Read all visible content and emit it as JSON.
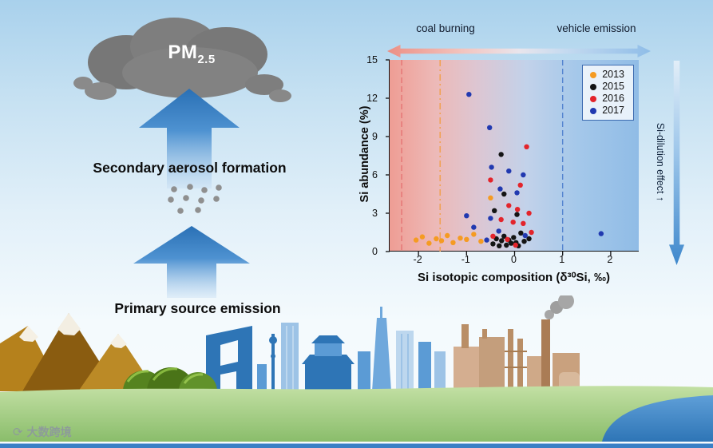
{
  "diagram": {
    "pm_label": "PM",
    "pm_subscript": "2.5",
    "secondary_label": "Secondary aerosol formation",
    "primary_label": "Primary source emission"
  },
  "chart": {
    "coal_label": "coal burning",
    "vehicle_label": "vehicle emission",
    "side_label": "Si-dilution effect ↑"
  },
  "chart_data": {
    "type": "scatter",
    "xlabel": "Si isotopic composition (δ³⁰Si, ‰)",
    "ylabel": "Si abundance (%)",
    "xlim": [
      -2.6,
      2.6
    ],
    "ylim": [
      0,
      15
    ],
    "x_ticks": [
      -2,
      -1,
      0,
      1,
      2
    ],
    "y_ticks": [
      0,
      3,
      6,
      9,
      12,
      15
    ],
    "grid": false,
    "legend_position": "top-right",
    "background_gradient": [
      "#ee9d94",
      "#90bce6"
    ],
    "vlines": [
      {
        "x": -2.35,
        "color": "#e57373",
        "dash": "7 4"
      },
      {
        "x": -1.55,
        "color": "#f0a04a",
        "dash": "8 4 2 4"
      },
      {
        "x": 1.0,
        "color": "#5585d0",
        "dash": "7 4"
      }
    ],
    "series": [
      {
        "name": "2013",
        "color": "#F59B22",
        "points": [
          [
            -2.05,
            0.9
          ],
          [
            -1.92,
            1.15
          ],
          [
            -1.78,
            0.65
          ],
          [
            -1.63,
            1.0
          ],
          [
            -1.52,
            0.85
          ],
          [
            -1.4,
            1.25
          ],
          [
            -1.28,
            0.7
          ],
          [
            -1.13,
            1.05
          ],
          [
            -1.0,
            0.95
          ],
          [
            -0.85,
            1.35
          ],
          [
            -0.7,
            0.8
          ],
          [
            -0.5,
            4.2
          ]
        ]
      },
      {
        "name": "2015",
        "color": "#141414",
        "points": [
          [
            -0.28,
            7.6
          ],
          [
            -0.22,
            4.5
          ],
          [
            -0.42,
            3.2
          ],
          [
            0.05,
            2.9
          ],
          [
            -0.45,
            0.6
          ],
          [
            -0.38,
            1.0
          ],
          [
            -0.32,
            0.45
          ],
          [
            -0.27,
            0.85
          ],
          [
            -0.22,
            1.2
          ],
          [
            -0.17,
            0.5
          ],
          [
            -0.12,
            0.9
          ],
          [
            -0.07,
            0.65
          ],
          [
            -0.02,
            1.1
          ],
          [
            0.03,
            0.7
          ],
          [
            0.08,
            0.45
          ],
          [
            0.13,
            1.45
          ],
          [
            0.2,
            0.8
          ],
          [
            0.3,
            1.0
          ]
        ]
      },
      {
        "name": "2016",
        "color": "#E3242B",
        "points": [
          [
            0.25,
            8.2
          ],
          [
            -0.5,
            5.6
          ],
          [
            0.12,
            5.2
          ],
          [
            -0.12,
            3.6
          ],
          [
            0.06,
            3.3
          ],
          [
            0.3,
            3.0
          ],
          [
            -0.28,
            2.5
          ],
          [
            -0.03,
            2.3
          ],
          [
            0.18,
            2.2
          ],
          [
            -0.45,
            1.2
          ],
          [
            -0.15,
            0.95
          ],
          [
            0.02,
            0.5
          ],
          [
            0.35,
            1.5
          ]
        ]
      },
      {
        "name": "2017",
        "color": "#2139B0",
        "points": [
          [
            -0.95,
            12.3
          ],
          [
            -0.52,
            9.7
          ],
          [
            -0.48,
            6.6
          ],
          [
            -0.12,
            6.3
          ],
          [
            0.18,
            6.0
          ],
          [
            -0.3,
            4.9
          ],
          [
            0.05,
            4.6
          ],
          [
            -1.0,
            2.8
          ],
          [
            -0.5,
            2.6
          ],
          [
            -0.85,
            1.9
          ],
          [
            -0.58,
            0.9
          ],
          [
            -0.33,
            1.6
          ],
          [
            0.22,
            1.25
          ],
          [
            1.8,
            1.4
          ]
        ]
      }
    ]
  },
  "watermark": {
    "text": "大数跨境"
  }
}
